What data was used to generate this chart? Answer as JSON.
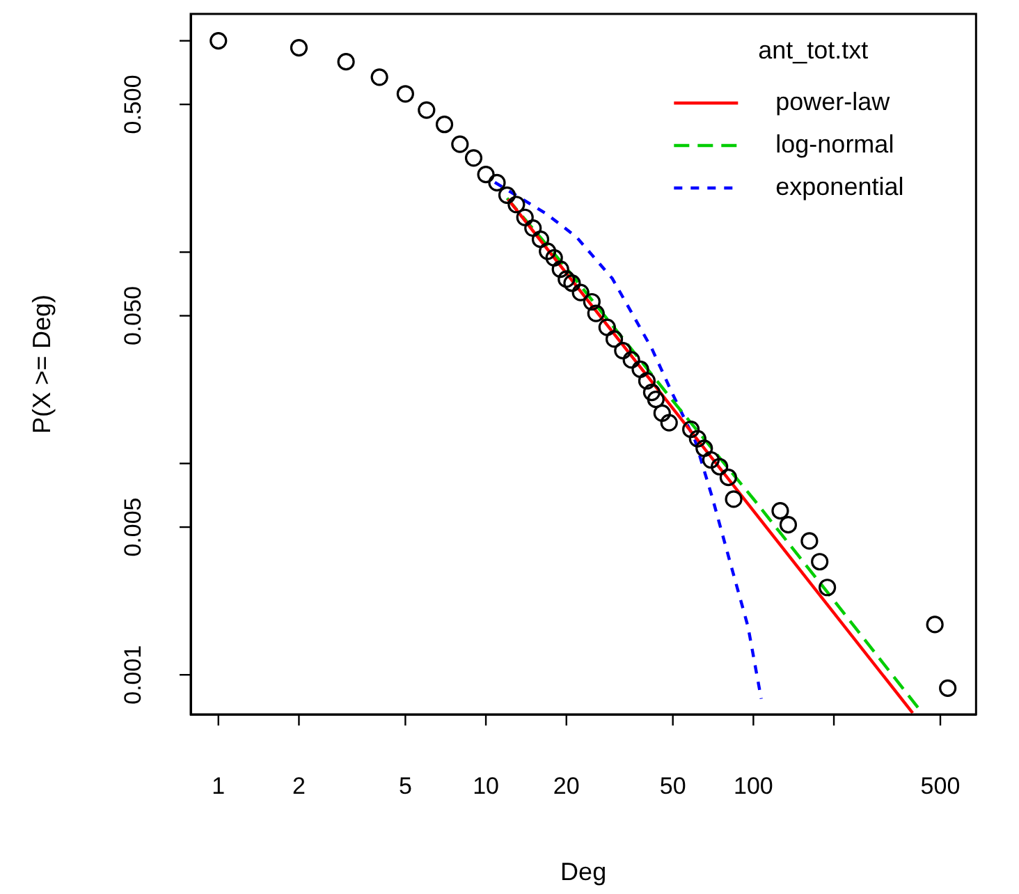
{
  "chart_data": {
    "type": "line",
    "xlabel": "Deg",
    "ylabel": "P(X >= Deg)",
    "legend_title": "ant_tot.txt",
    "legend": "top right",
    "log": "xy",
    "grid": false,
    "xlim": [
      0.788,
      680
    ],
    "ylim": [
      0.00065,
      1.34
    ],
    "xticks": [
      1,
      2,
      5,
      10,
      20,
      50,
      100,
      {
        "value": 200,
        "label": null
      },
      500
    ],
    "yticks": [
      {
        "value": 1,
        "label": null
      },
      {
        "value": 0.5,
        "label": "0.500"
      },
      {
        "value": 0.1,
        "label": null
      },
      {
        "value": 0.05,
        "label": "0.050"
      },
      {
        "value": 0.01,
        "label": null
      },
      {
        "value": 0.005,
        "label": "0.005"
      },
      {
        "value": 0.001,
        "label": "0.001"
      }
    ],
    "series": [
      {
        "type": "scatter",
        "marker": "circle",
        "color": "#000000",
        "x": [
          1,
          2,
          3,
          4,
          5,
          6,
          7,
          8,
          9,
          10,
          11,
          12,
          13,
          14,
          15,
          16,
          17,
          18,
          19,
          20,
          21,
          22.6,
          24.9,
          25.8,
          28.4,
          30.2,
          32.5,
          35,
          37.8,
          40,
          41.7,
          43.2,
          45.6,
          48.4,
          58.4,
          61.9,
          65.5,
          69.4,
          74.7,
          80.6,
          84.4,
          126,
          135,
          162,
          177,
          189,
          477,
          533
        ],
        "values": [
          1,
          0.927,
          0.796,
          0.673,
          0.561,
          0.47,
          0.402,
          0.324,
          0.279,
          0.233,
          0.213,
          0.186,
          0.168,
          0.146,
          0.13,
          0.115,
          0.101,
          0.094,
          0.083,
          0.0745,
          0.0713,
          0.0644,
          0.0582,
          0.0513,
          0.0441,
          0.0388,
          0.0342,
          0.0309,
          0.0279,
          0.0246,
          0.0217,
          0.0201,
          0.0173,
          0.0156,
          0.0145,
          0.0131,
          0.0118,
          0.0104,
          0.00966,
          0.00859,
          0.00678,
          0.00597,
          0.00513,
          0.0043,
          0.00343,
          0.00259,
          0.00173,
          0.000865
        ]
      },
      {
        "name": "power-law",
        "color": "#ff0000",
        "line_style": "solid",
        "x": [
          12.1,
          394
        ],
        "values": [
          0.178,
          0.00066
        ]
      },
      {
        "name": "log-normal",
        "color": "#00cd00",
        "line_style": "dashed",
        "x": [
          12,
          20,
          50,
          100,
          200,
          420
        ],
        "values": [
          0.18,
          0.084,
          0.0198,
          0.0068,
          0.00225,
          0.00068
        ]
      },
      {
        "name": "exponential",
        "color": "#0000ff",
        "line_style": "dotted",
        "x": [
          10.8,
          16.8,
          21.8,
          29.7,
          35.6,
          41.7,
          50,
          60.6,
          70,
          81.9,
          95.5,
          107
        ],
        "values": [
          0.214,
          0.152,
          0.118,
          0.075,
          0.05,
          0.035,
          0.0212,
          0.0128,
          0.007,
          0.0034,
          0.00169,
          0.00077
        ]
      }
    ]
  }
}
